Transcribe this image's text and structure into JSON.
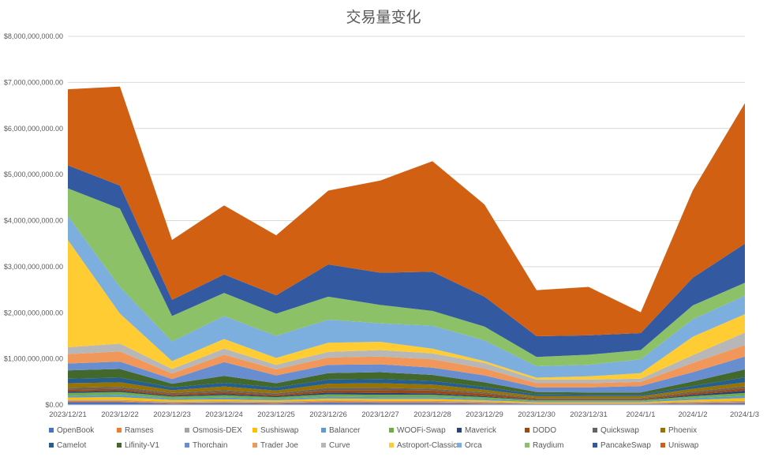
{
  "chart_data": {
    "type": "area",
    "stacked": true,
    "title": "交易量变化",
    "xlabel": "",
    "ylabel": "",
    "ylim": [
      0,
      8000000000
    ],
    "y_ticks": [
      {
        "value": 0,
        "label": "$0.00"
      },
      {
        "value": 1000000000,
        "label": "$1,000,000,000.00"
      },
      {
        "value": 2000000000,
        "label": "$2,000,000,000.00"
      },
      {
        "value": 3000000000,
        "label": "$3,000,000,000.00"
      },
      {
        "value": 4000000000,
        "label": "$4,000,000,000.00"
      },
      {
        "value": 5000000000,
        "label": "$5,000,000,000.00"
      },
      {
        "value": 6000000000,
        "label": "$6,000,000,000.00"
      },
      {
        "value": 7000000000,
        "label": "$7,000,000,000.00"
      },
      {
        "value": 8000000000,
        "label": "$8,000,000,000.00"
      }
    ],
    "grid": true,
    "legend_position": "bottom",
    "categories": [
      "2023/12/21",
      "2023/12/22",
      "2023/12/23",
      "2023/12/24",
      "2023/12/25",
      "2023/12/26",
      "2023/12/27",
      "2023/12/28",
      "2023/12/29",
      "2023/12/30",
      "2023/12/31",
      "2024/1/1",
      "2024/1/2",
      "2024/1/3"
    ],
    "series": [
      {
        "name": "OpenBook",
        "color": "#4472c4",
        "values": [
          60000000,
          60000000,
          30000000,
          40000000,
          30000000,
          50000000,
          40000000,
          40000000,
          30000000,
          20000000,
          20000000,
          20000000,
          30000000,
          40000000
        ]
      },
      {
        "name": "Ramses",
        "color": "#ed7d31",
        "values": [
          30000000,
          30000000,
          20000000,
          20000000,
          20000000,
          30000000,
          30000000,
          30000000,
          20000000,
          10000000,
          10000000,
          10000000,
          20000000,
          30000000
        ]
      },
      {
        "name": "Osmosis-DEX",
        "color": "#a5a5a5",
        "values": [
          20000000,
          20000000,
          20000000,
          20000000,
          20000000,
          20000000,
          20000000,
          20000000,
          20000000,
          10000000,
          10000000,
          10000000,
          20000000,
          20000000
        ]
      },
      {
        "name": "Sushiswap",
        "color": "#ffc000",
        "values": [
          50000000,
          60000000,
          40000000,
          40000000,
          30000000,
          40000000,
          40000000,
          40000000,
          30000000,
          20000000,
          20000000,
          20000000,
          40000000,
          60000000
        ]
      },
      {
        "name": "Balancer",
        "color": "#5b9bd5",
        "values": [
          40000000,
          50000000,
          30000000,
          40000000,
          30000000,
          40000000,
          40000000,
          40000000,
          30000000,
          20000000,
          20000000,
          20000000,
          40000000,
          50000000
        ]
      },
      {
        "name": "WOOFi-Swap",
        "color": "#70ad47",
        "values": [
          60000000,
          60000000,
          40000000,
          50000000,
          40000000,
          50000000,
          50000000,
          50000000,
          40000000,
          20000000,
          20000000,
          20000000,
          40000000,
          60000000
        ]
      },
      {
        "name": "Maverick",
        "color": "#264478",
        "values": [
          30000000,
          30000000,
          20000000,
          30000000,
          20000000,
          40000000,
          40000000,
          30000000,
          20000000,
          10000000,
          10000000,
          10000000,
          30000000,
          50000000
        ]
      },
      {
        "name": "DODO",
        "color": "#9e480e",
        "values": [
          40000000,
          40000000,
          30000000,
          40000000,
          30000000,
          50000000,
          60000000,
          60000000,
          50000000,
          20000000,
          20000000,
          20000000,
          40000000,
          50000000
        ]
      },
      {
        "name": "Quickswap",
        "color": "#636363",
        "values": [
          40000000,
          40000000,
          30000000,
          40000000,
          30000000,
          50000000,
          50000000,
          40000000,
          30000000,
          20000000,
          20000000,
          20000000,
          30000000,
          40000000
        ]
      },
      {
        "name": "Phoenix",
        "color": "#997300",
        "values": [
          100000000,
          100000000,
          60000000,
          80000000,
          60000000,
          90000000,
          100000000,
          90000000,
          60000000,
          40000000,
          40000000,
          40000000,
          60000000,
          90000000
        ]
      },
      {
        "name": "Camelot",
        "color": "#255e91",
        "values": [
          100000000,
          100000000,
          60000000,
          80000000,
          70000000,
          90000000,
          90000000,
          80000000,
          60000000,
          40000000,
          30000000,
          30000000,
          60000000,
          110000000
        ]
      },
      {
        "name": "Lifinity-V1",
        "color": "#43682b",
        "values": [
          180000000,
          190000000,
          80000000,
          150000000,
          90000000,
          140000000,
          150000000,
          130000000,
          100000000,
          50000000,
          50000000,
          50000000,
          100000000,
          170000000
        ]
      },
      {
        "name": "Thorchain",
        "color": "#698ed0",
        "values": [
          150000000,
          160000000,
          100000000,
          300000000,
          170000000,
          180000000,
          170000000,
          160000000,
          150000000,
          100000000,
          110000000,
          140000000,
          200000000,
          280000000
        ]
      },
      {
        "name": "Trader Joe",
        "color": "#f1975a",
        "values": [
          200000000,
          220000000,
          120000000,
          160000000,
          130000000,
          160000000,
          170000000,
          180000000,
          150000000,
          90000000,
          90000000,
          90000000,
          200000000,
          250000000
        ]
      },
      {
        "name": "Curve",
        "color": "#b7b7b7",
        "values": [
          150000000,
          170000000,
          100000000,
          130000000,
          100000000,
          120000000,
          140000000,
          130000000,
          120000000,
          80000000,
          80000000,
          70000000,
          170000000,
          270000000
        ]
      },
      {
        "name": "Astroport-Classic",
        "color": "#ffcd33",
        "values": [
          2330000000,
          650000000,
          170000000,
          210000000,
          150000000,
          200000000,
          180000000,
          100000000,
          40000000,
          40000000,
          70000000,
          120000000,
          400000000,
          400000000
        ]
      },
      {
        "name": "Orca",
        "color": "#7cafdd",
        "values": [
          520000000,
          580000000,
          430000000,
          500000000,
          480000000,
          500000000,
          400000000,
          500000000,
          450000000,
          250000000,
          250000000,
          300000000,
          380000000,
          400000000
        ]
      },
      {
        "name": "Raydium",
        "color": "#8cc168",
        "values": [
          600000000,
          1700000000,
          550000000,
          500000000,
          480000000,
          500000000,
          400000000,
          320000000,
          300000000,
          200000000,
          220000000,
          200000000,
          300000000,
          280000000
        ]
      },
      {
        "name": "PancakeSwap",
        "color": "#335aa1",
        "values": [
          500000000,
          500000000,
          350000000,
          400000000,
          400000000,
          700000000,
          700000000,
          850000000,
          650000000,
          450000000,
          420000000,
          370000000,
          600000000,
          850000000
        ]
      },
      {
        "name": "Uniswap",
        "color": "#d26012",
        "values": [
          1650000000,
          2150000000,
          1300000000,
          1500000000,
          1300000000,
          1600000000,
          2000000000,
          2400000000,
          2000000000,
          1000000000,
          1050000000,
          450000000,
          1900000000,
          3050000000
        ]
      }
    ]
  }
}
